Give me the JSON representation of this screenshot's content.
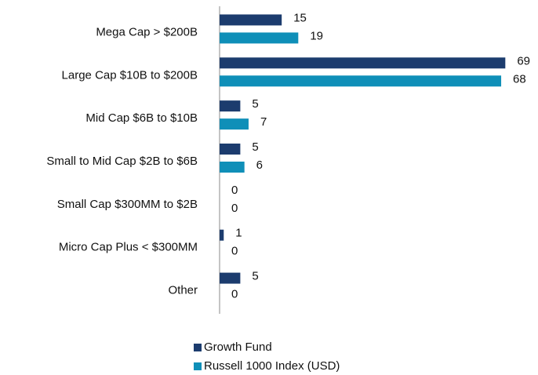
{
  "chart_data": {
    "type": "hbar",
    "categories": [
      "Mega Cap > $200B",
      "Large Cap $10B to $200B",
      "Mid Cap $6B to $10B",
      "Small to Mid Cap $2B to $6B",
      "Small Cap $300MM to $2B",
      "Micro Cap Plus < $300MM",
      "Other"
    ],
    "series": [
      {
        "name": "Growth Fund",
        "color": "#1c3c6e",
        "values": [
          15,
          69,
          5,
          5,
          0,
          1,
          5
        ]
      },
      {
        "name": "Russell 1000 Index (USD)",
        "color": "#0f8fb8",
        "values": [
          19,
          68,
          7,
          6,
          0,
          0,
          0
        ]
      }
    ],
    "xlim": [
      0,
      75
    ]
  }
}
